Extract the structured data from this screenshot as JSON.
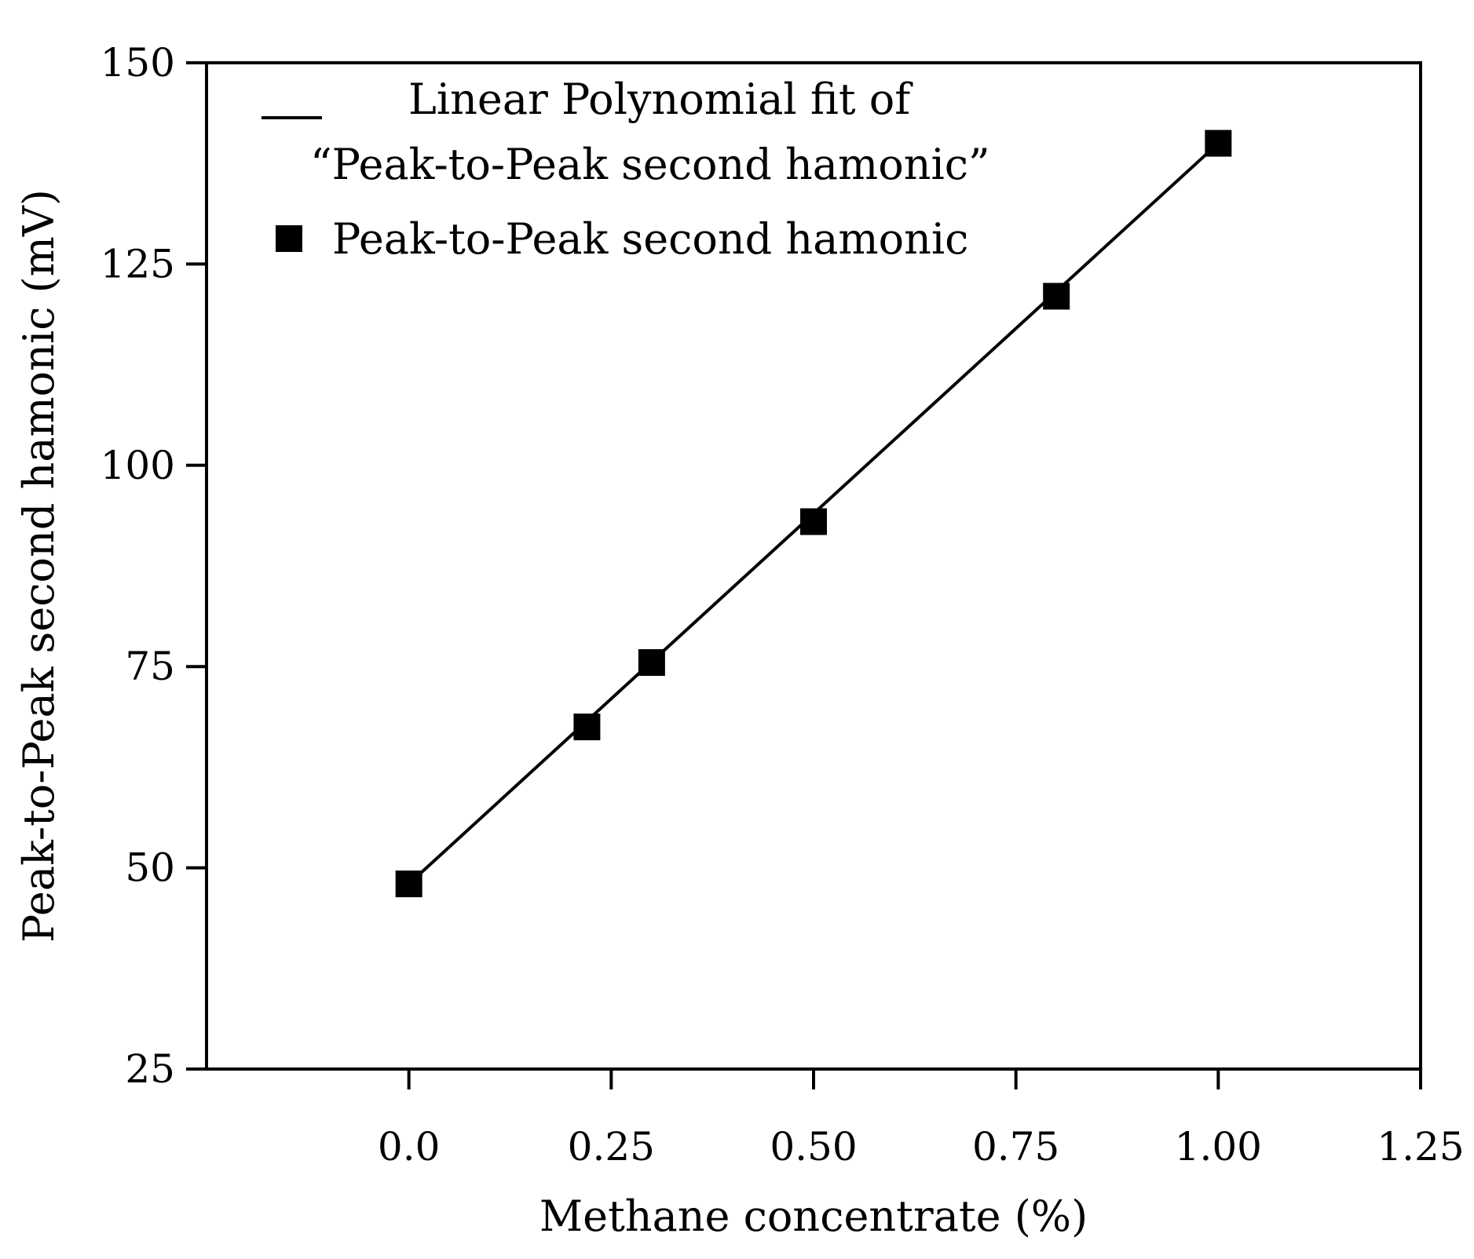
{
  "chart_data": {
    "type": "scatter",
    "xlabel": "Methane concentrate (%)",
    "ylabel": "Peak-to-Peak second hamonic (mV)",
    "xlim": [
      -0.25,
      1.25
    ],
    "ylim": [
      25,
      150
    ],
    "xticks": [
      0.0,
      0.25,
      0.5,
      0.75,
      1.0,
      1.25
    ],
    "xtick_labels": [
      "0.0",
      "0.25",
      "0.50",
      "0.75",
      "1.00",
      "1.25"
    ],
    "yticks": [
      25,
      50,
      75,
      100,
      125,
      150
    ],
    "ytick_labels": [
      "25",
      "50",
      "75",
      "100",
      "125",
      "150"
    ],
    "grid": false,
    "legend_position": "top-left",
    "series": [
      {
        "name": "Peak-to-Peak second hamonic",
        "kind": "markers",
        "marker": "square",
        "x": [
          0.0,
          0.22,
          0.3,
          0.5,
          0.8,
          1.0
        ],
        "y": [
          48,
          67.5,
          75.5,
          93,
          121,
          140
        ]
      },
      {
        "name": "Linear Polynomial fit of “Peak-to-Peak second hamonic”",
        "kind": "line",
        "x": [
          0.0,
          1.0
        ],
        "y": [
          48,
          140
        ]
      }
    ],
    "legend": {
      "fit_line1": "Linear Polynomial fit of",
      "fit_line2": "“Peak-to-Peak second hamonic”",
      "markers": "Peak-to-Peak second hamonic"
    }
  },
  "colors": {
    "line": "#000000",
    "marker": "#000000",
    "axis": "#000000"
  }
}
